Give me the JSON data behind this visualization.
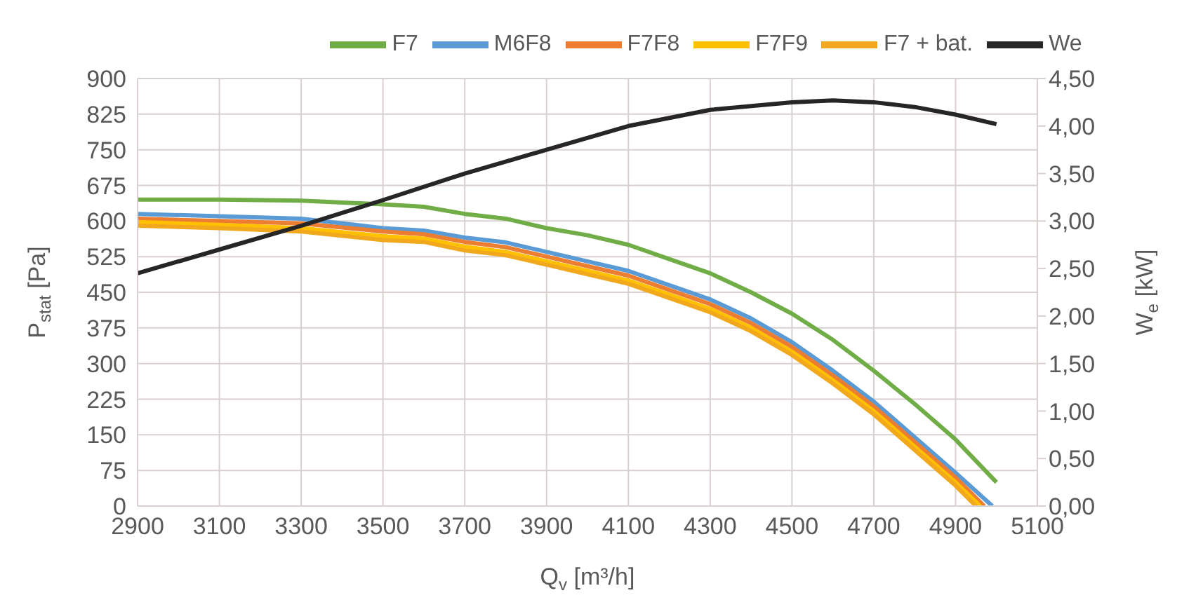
{
  "chart_data": {
    "type": "line",
    "xlabel": "Q$_{v}$ [m³/h]",
    "ylabel": "P$_{stat}$ [Pa]",
    "y2label": "W$_{e}$ [kW]",
    "xlim": [
      2900,
      5100
    ],
    "xticks": [
      2900,
      3100,
      3300,
      3500,
      3700,
      3900,
      4100,
      4300,
      4500,
      4700,
      4900,
      5100
    ],
    "ylim": [
      0,
      900
    ],
    "yticks": [
      0,
      75,
      150,
      225,
      300,
      375,
      450,
      525,
      600,
      675,
      750,
      825,
      900
    ],
    "y2lim": [
      0,
      4.5
    ],
    "y2ticks": [
      {
        "value": 0,
        "label": "0,00"
      },
      {
        "value": 0.5,
        "label": "0,50"
      },
      {
        "value": 1,
        "label": "1,00"
      },
      {
        "value": 1.5,
        "label": "1,50"
      },
      {
        "value": 2,
        "label": "2,00"
      },
      {
        "value": 2.5,
        "label": "2,50"
      },
      {
        "value": 3,
        "label": "3,00"
      },
      {
        "value": 3.5,
        "label": "3,50"
      },
      {
        "value": 4,
        "label": "4,00"
      },
      {
        "value": 4.5,
        "label": "4,50"
      }
    ],
    "grid": true,
    "legend": "top",
    "marker": "none",
    "line_style": "solid",
    "series": [
      {
        "name": "F7",
        "color": "#70ad47",
        "x": [
          2900,
          3100,
          3300,
          3500,
          3600,
          3700,
          3800,
          3900,
          4000,
          4100,
          4200,
          4300,
          4400,
          4500,
          4600,
          4700,
          4800,
          4900,
          5000
        ],
        "values": [
          645,
          645,
          643,
          635,
          630,
          615,
          605,
          585,
          570,
          550,
          520,
          490,
          450,
          405,
          350,
          285,
          215,
          140,
          50
        ]
      },
      {
        "name": "M6F8",
        "color": "#5b9bd5",
        "x": [
          2900,
          3100,
          3300,
          3500,
          3600,
          3700,
          3800,
          3900,
          4000,
          4100,
          4200,
          4300,
          4400,
          4500,
          4600,
          4700,
          4800,
          4900,
          4990
        ],
        "values": [
          615,
          610,
          605,
          585,
          580,
          565,
          555,
          535,
          515,
          495,
          465,
          435,
          395,
          345,
          285,
          220,
          145,
          70,
          0
        ]
      },
      {
        "name": "F7F8",
        "color": "#ed7d31",
        "x": [
          2900,
          3100,
          3300,
          3500,
          3600,
          3700,
          3800,
          3900,
          4000,
          4100,
          4200,
          4300,
          4400,
          4500,
          4600,
          4700,
          4800,
          4900,
          4970
        ],
        "values": [
          605,
          600,
          595,
          578,
          572,
          556,
          545,
          525,
          505,
          485,
          455,
          425,
          385,
          335,
          275,
          210,
          135,
          60,
          0
        ]
      },
      {
        "name": "F7F9",
        "color": "#ffc000",
        "x": [
          2900,
          3100,
          3300,
          3500,
          3600,
          3700,
          3800,
          3900,
          4000,
          4100,
          4200,
          4300,
          4400,
          4500,
          4600,
          4700,
          4800,
          4900,
          4960
        ],
        "values": [
          598,
          592,
          585,
          568,
          563,
          546,
          535,
          515,
          495,
          475,
          445,
          415,
          375,
          325,
          265,
          200,
          125,
          50,
          0
        ]
      },
      {
        "name": "F7 + bat.",
        "color": "#f2a81d",
        "x": [
          2900,
          3100,
          3300,
          3500,
          3600,
          3700,
          3800,
          3900,
          4000,
          4100,
          4200,
          4300,
          4400,
          4500,
          4600,
          4700,
          4800,
          4900,
          4950
        ],
        "values": [
          590,
          585,
          578,
          560,
          556,
          538,
          528,
          508,
          488,
          468,
          438,
          408,
          368,
          318,
          258,
          193,
          118,
          43,
          0
        ]
      },
      {
        "name": "We",
        "color": "#262626",
        "axis": "y2",
        "x": [
          2900,
          3100,
          3300,
          3500,
          3700,
          3900,
          4100,
          4300,
          4500,
          4600,
          4700,
          4800,
          4900,
          5000
        ],
        "values": [
          2.45,
          2.7,
          2.95,
          3.22,
          3.5,
          3.75,
          4.0,
          4.17,
          4.25,
          4.27,
          4.25,
          4.2,
          4.12,
          4.02
        ]
      }
    ]
  }
}
